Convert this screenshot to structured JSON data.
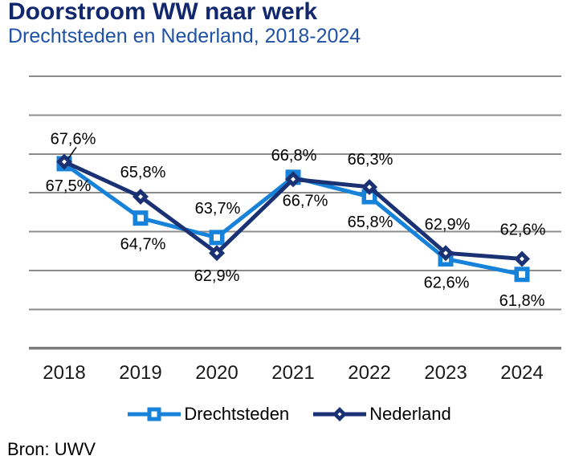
{
  "header": {
    "title": "Doorstroom WW naar werk",
    "subtitle": "Drechtsteden en Nederland, 2018-2024"
  },
  "source": "Bron: UWV",
  "colors": {
    "title": "#12286E",
    "subtitle": "#1F52A5",
    "grid": "#8C8C8C",
    "axis": "#7D7D7D",
    "data_label": "#000000",
    "tick_label": "#1A1A1A"
  },
  "chart_data": {
    "type": "line",
    "title": "Doorstroom WW naar werk",
    "subtitle": "Drechtsteden en Nederland, 2018-2024",
    "xlabel": "",
    "ylabel": "",
    "categories": [
      "2018",
      "2019",
      "2020",
      "2021",
      "2022",
      "2023",
      "2024"
    ],
    "ylim": [
      58,
      72
    ],
    "grid_step": 2,
    "grid": true,
    "legend_position": "bottom",
    "series": [
      {
        "name": "Drechtsteden",
        "color": "#1782DA",
        "marker": "square",
        "values": [
          67.5,
          64.7,
          63.7,
          66.8,
          65.8,
          62.6,
          61.8
        ],
        "labels": [
          "67,5%",
          "64,7%",
          "63,7%",
          "66,8%",
          "65,8%",
          "62,6%",
          "61,8%"
        ],
        "label_side": [
          "below",
          "below",
          "above",
          "above",
          "below",
          "below",
          "below"
        ],
        "label_dx": [
          5,
          3,
          1,
          1,
          1,
          1,
          0
        ],
        "label_dy": [
          34,
          39,
          -30,
          -21,
          38,
          36,
          39
        ],
        "callout": [
          false,
          false,
          false,
          false,
          false,
          false,
          false
        ]
      },
      {
        "name": "Nederland",
        "color": "#1A3173",
        "marker": "diamond",
        "values": [
          67.6,
          65.8,
          62.9,
          66.7,
          66.3,
          62.9,
          62.6
        ],
        "labels": [
          "67,6%",
          "65,8%",
          "62,9%",
          "66,7%",
          "66,3%",
          "62,9%",
          "62,6%"
        ],
        "label_side": [
          "above",
          "above",
          "below",
          "below",
          "above",
          "above",
          "above"
        ],
        "label_dx": [
          11,
          3,
          0,
          15,
          1,
          2,
          1
        ],
        "label_dy": [
          -22,
          -24,
          35,
          33,
          -28,
          -29,
          -30
        ],
        "callout": [
          true,
          false,
          false,
          false,
          false,
          false,
          false
        ]
      }
    ]
  }
}
